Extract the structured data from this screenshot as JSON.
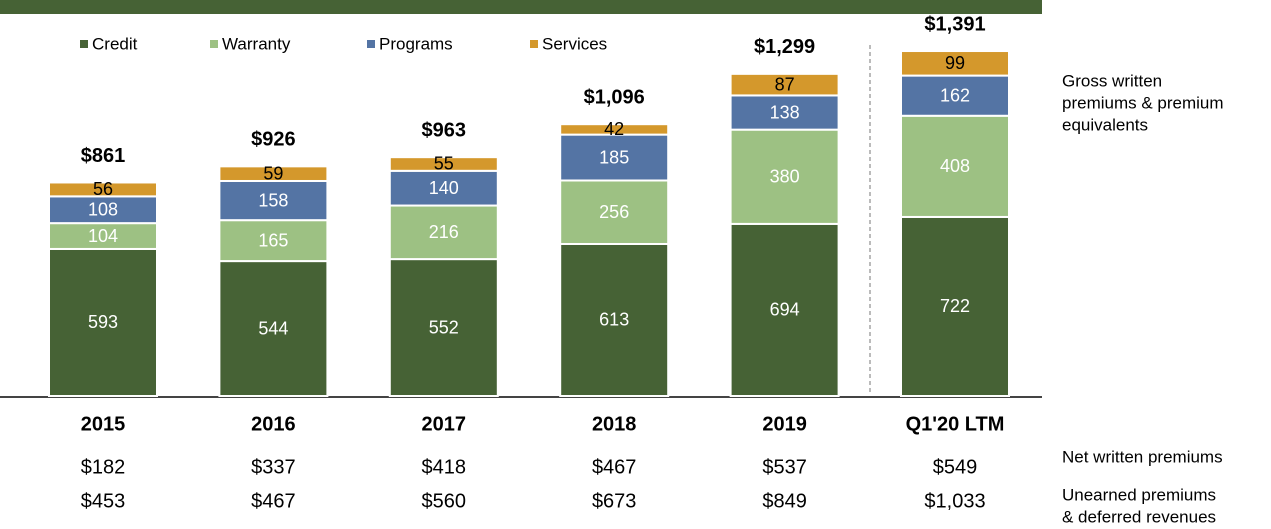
{
  "chart_data": {
    "type": "stacked_bar",
    "categories": [
      "2015",
      "2016",
      "2017",
      "2018",
      "2019",
      "Q1'20 LTM"
    ],
    "series": [
      {
        "name": "Credit",
        "color": "#466235",
        "values": [
          593,
          544,
          552,
          613,
          694,
          722
        ]
      },
      {
        "name": "Warranty",
        "color": "#9dc183",
        "values": [
          104,
          165,
          216,
          256,
          380,
          408
        ]
      },
      {
        "name": "Programs",
        "color": "#5474a4",
        "values": [
          108,
          158,
          140,
          185,
          138,
          162
        ]
      },
      {
        "name": "Services",
        "color": "#d4982c",
        "values": [
          56,
          59,
          55,
          42,
          87,
          99
        ]
      }
    ],
    "totals": {
      "values": [
        861,
        926,
        963,
        1096,
        1299,
        1391
      ],
      "value_labels": [
        "$861",
        "$926",
        "$963",
        "$1,096",
        "$1,299",
        "$1,391"
      ]
    },
    "gross_label": [
      "Gross written",
      "premiums & premium",
      "equivalents"
    ],
    "net_written_premiums": {
      "label": "Net written premiums",
      "values": [
        "$182",
        "$337",
        "$418",
        "$467",
        "$537",
        "$549"
      ]
    },
    "unearned_premiums": {
      "label": [
        "Unearned premiums",
        "& deferred revenues"
      ],
      "values": [
        "$453",
        "$467",
        "$560",
        "$673",
        "$849",
        "$1,033"
      ]
    }
  }
}
